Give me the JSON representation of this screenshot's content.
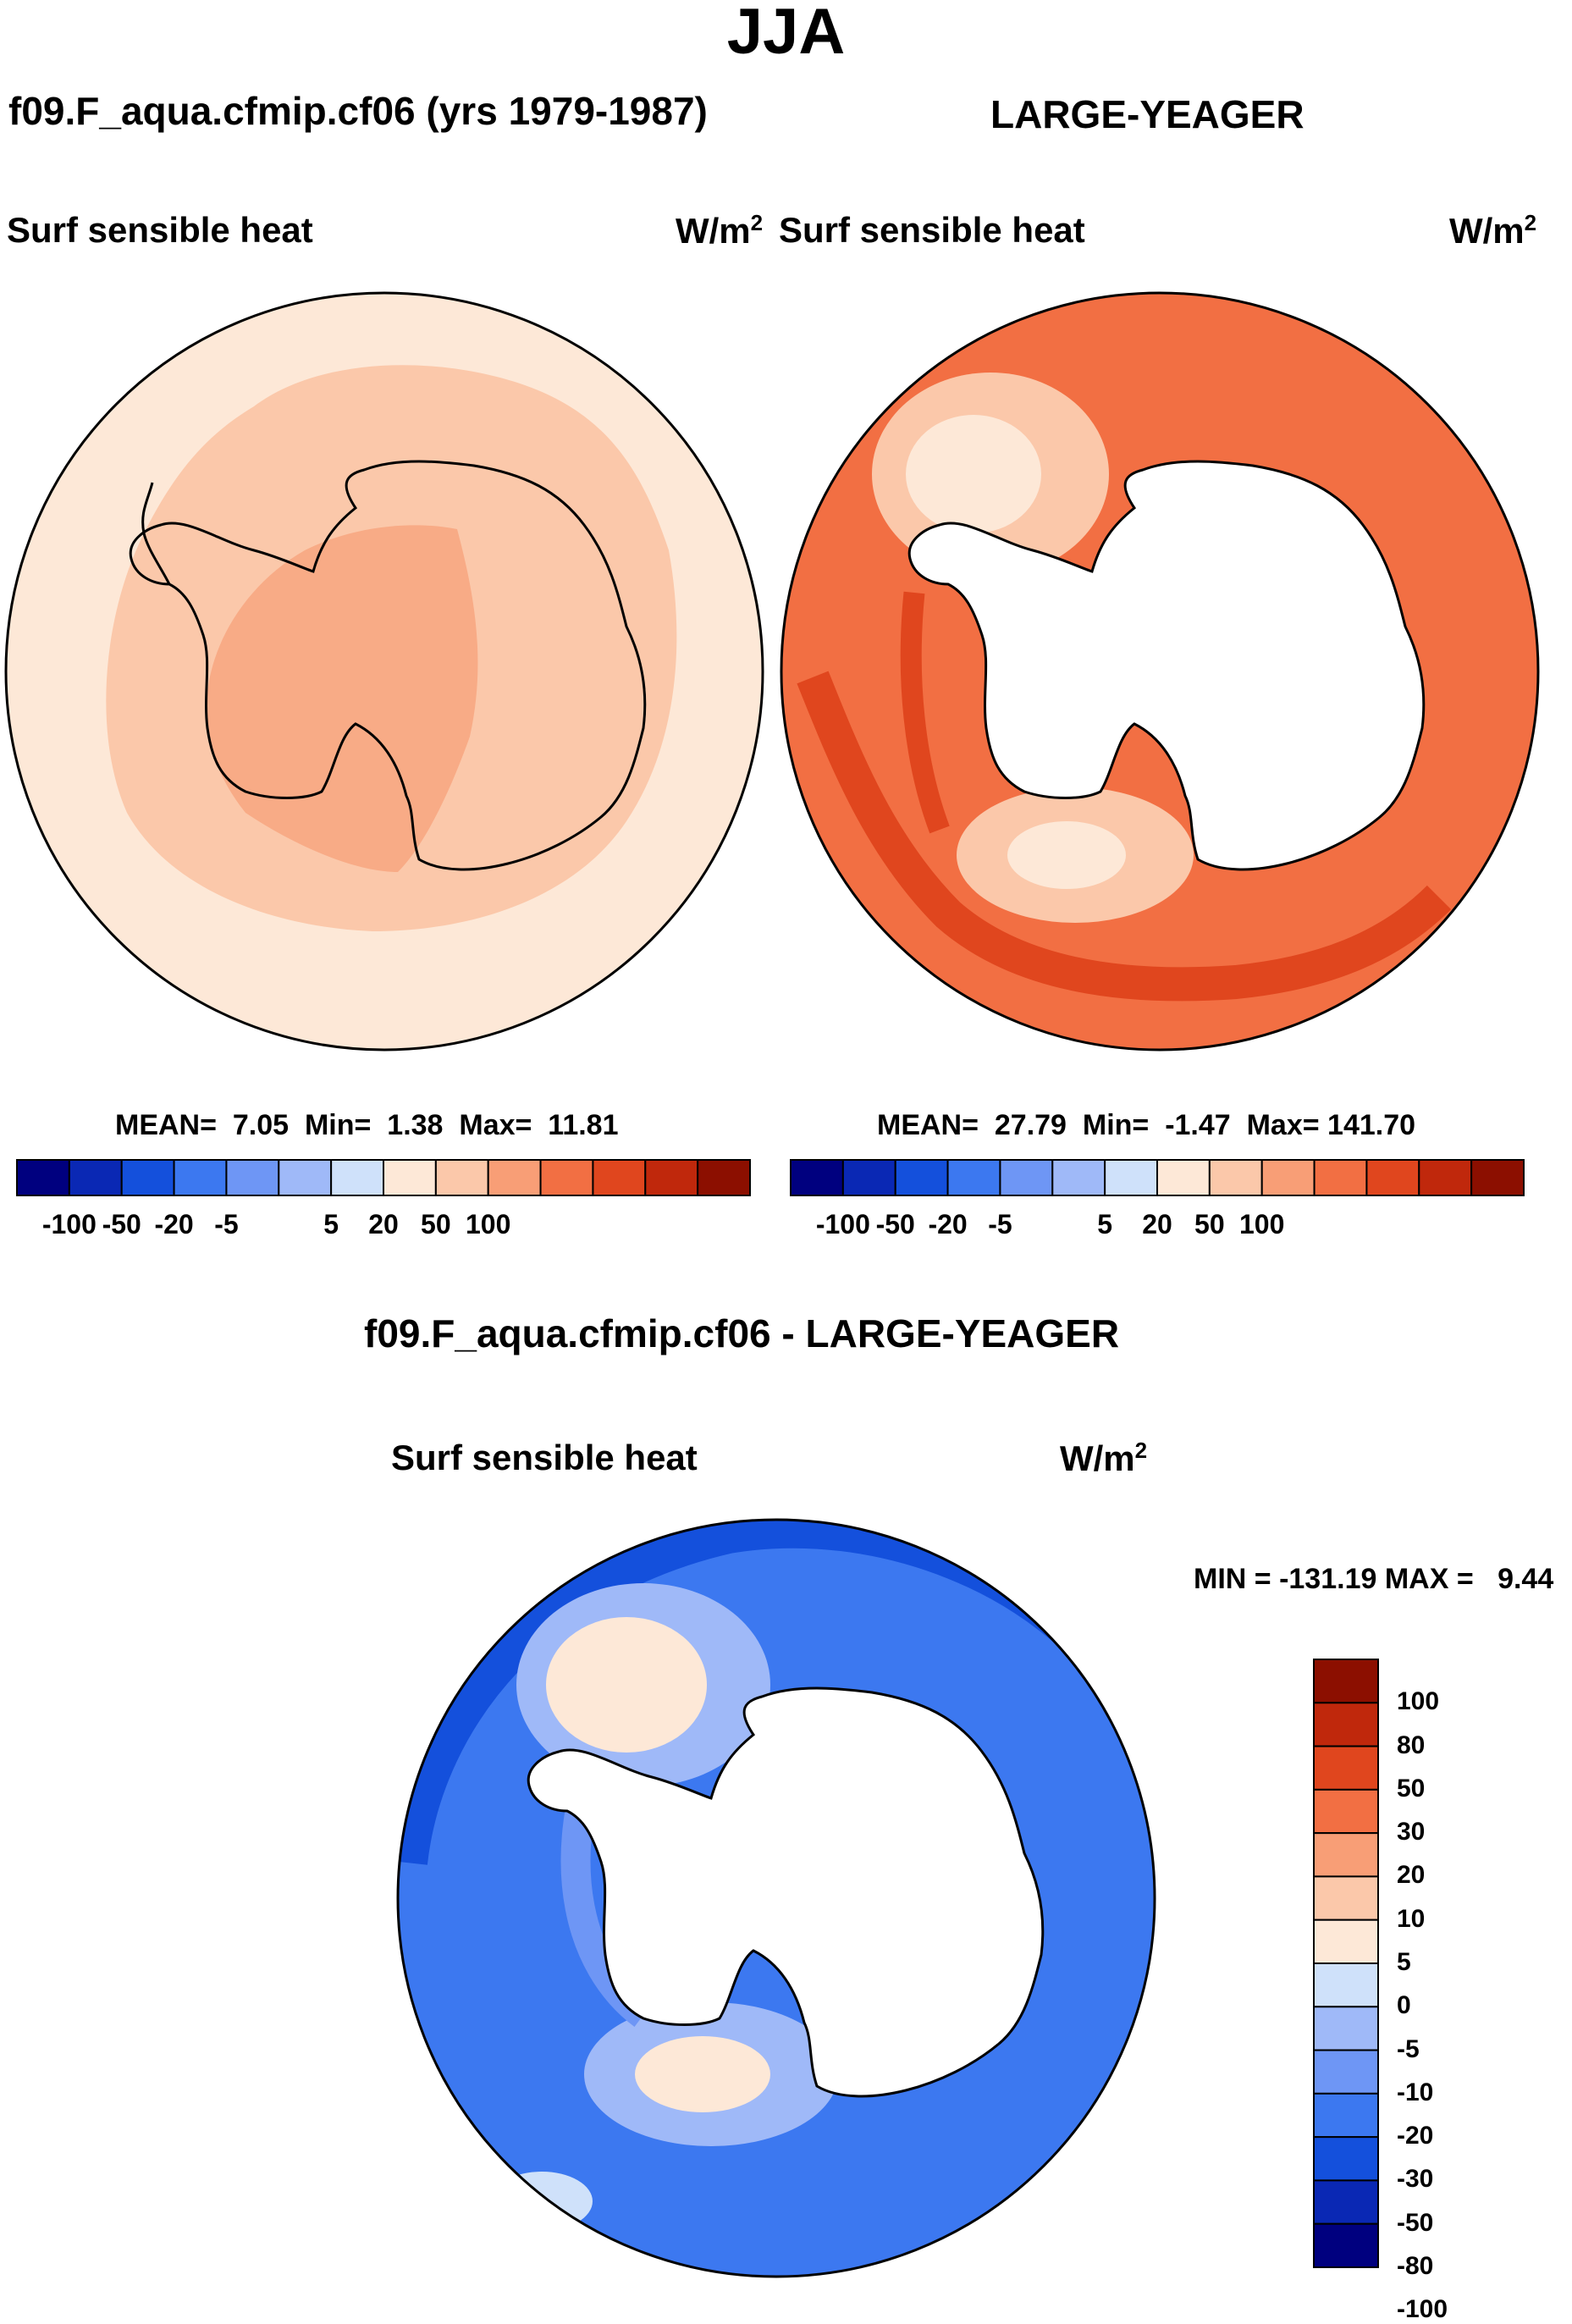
{
  "figure": {
    "season": "JJA",
    "panels": {
      "left": {
        "case_name": "f09.F_aqua.cfmip.cf06 (yrs 1979-1987)",
        "variable": "Surf sensible heat",
        "units": "W/m",
        "units_exp": "2",
        "stats": {
          "mean": "7.05",
          "min": "1.38",
          "max": "11.81"
        },
        "stats_labels": {
          "mean": "MEAN=",
          "min": "Min=",
          "max": "Max="
        }
      },
      "right": {
        "case_name": "LARGE-YEAGER",
        "variable": "Surf sensible heat",
        "units": "W/m",
        "units_exp": "2",
        "stats": {
          "mean": "27.79",
          "min": "-1.47",
          "max": "141.70"
        },
        "stats_labels": {
          "mean": "MEAN=",
          "min": "Min=",
          "max": "Max="
        }
      },
      "diff": {
        "case_name": "f09.F_aqua.cfmip.cf06 - LARGE-YEAGER",
        "variable": "Surf sensible heat",
        "units": "W/m",
        "units_exp": "2",
        "min_label": "MIN =",
        "min_value": "-131.19",
        "max_label": "MAX =",
        "max_value": "9.44"
      }
    },
    "colorbar_top": {
      "colors": [
        "#00007f",
        "#0a28b4",
        "#1450dc",
        "#3c78f0",
        "#6e96f5",
        "#9fb9f8",
        "#cfe1fa",
        "#fde8d7",
        "#fbc8aa",
        "#f89e76",
        "#f26f43",
        "#e0461e",
        "#c0280c",
        "#8c0f00"
      ],
      "labels": [
        "-100",
        "-50",
        "-20",
        "-5",
        "5",
        "20",
        "50",
        "100"
      ]
    },
    "colorbar_diff": {
      "colors_top_to_bottom": [
        "#8c0f00",
        "#c0280c",
        "#e0461e",
        "#f26f43",
        "#f89e76",
        "#fbc8aa",
        "#fde8d7",
        "#cfe1fa",
        "#9fb9f8",
        "#6e96f5",
        "#3c78f0",
        "#1450dc",
        "#0a28b4",
        "#00007f"
      ],
      "labels_top_to_bottom": [
        "100",
        "80",
        "50",
        "30",
        "20",
        "10",
        "5",
        "0",
        "-5",
        "-10",
        "-20",
        "-30",
        "-50",
        "-80",
        "-100"
      ]
    }
  }
}
